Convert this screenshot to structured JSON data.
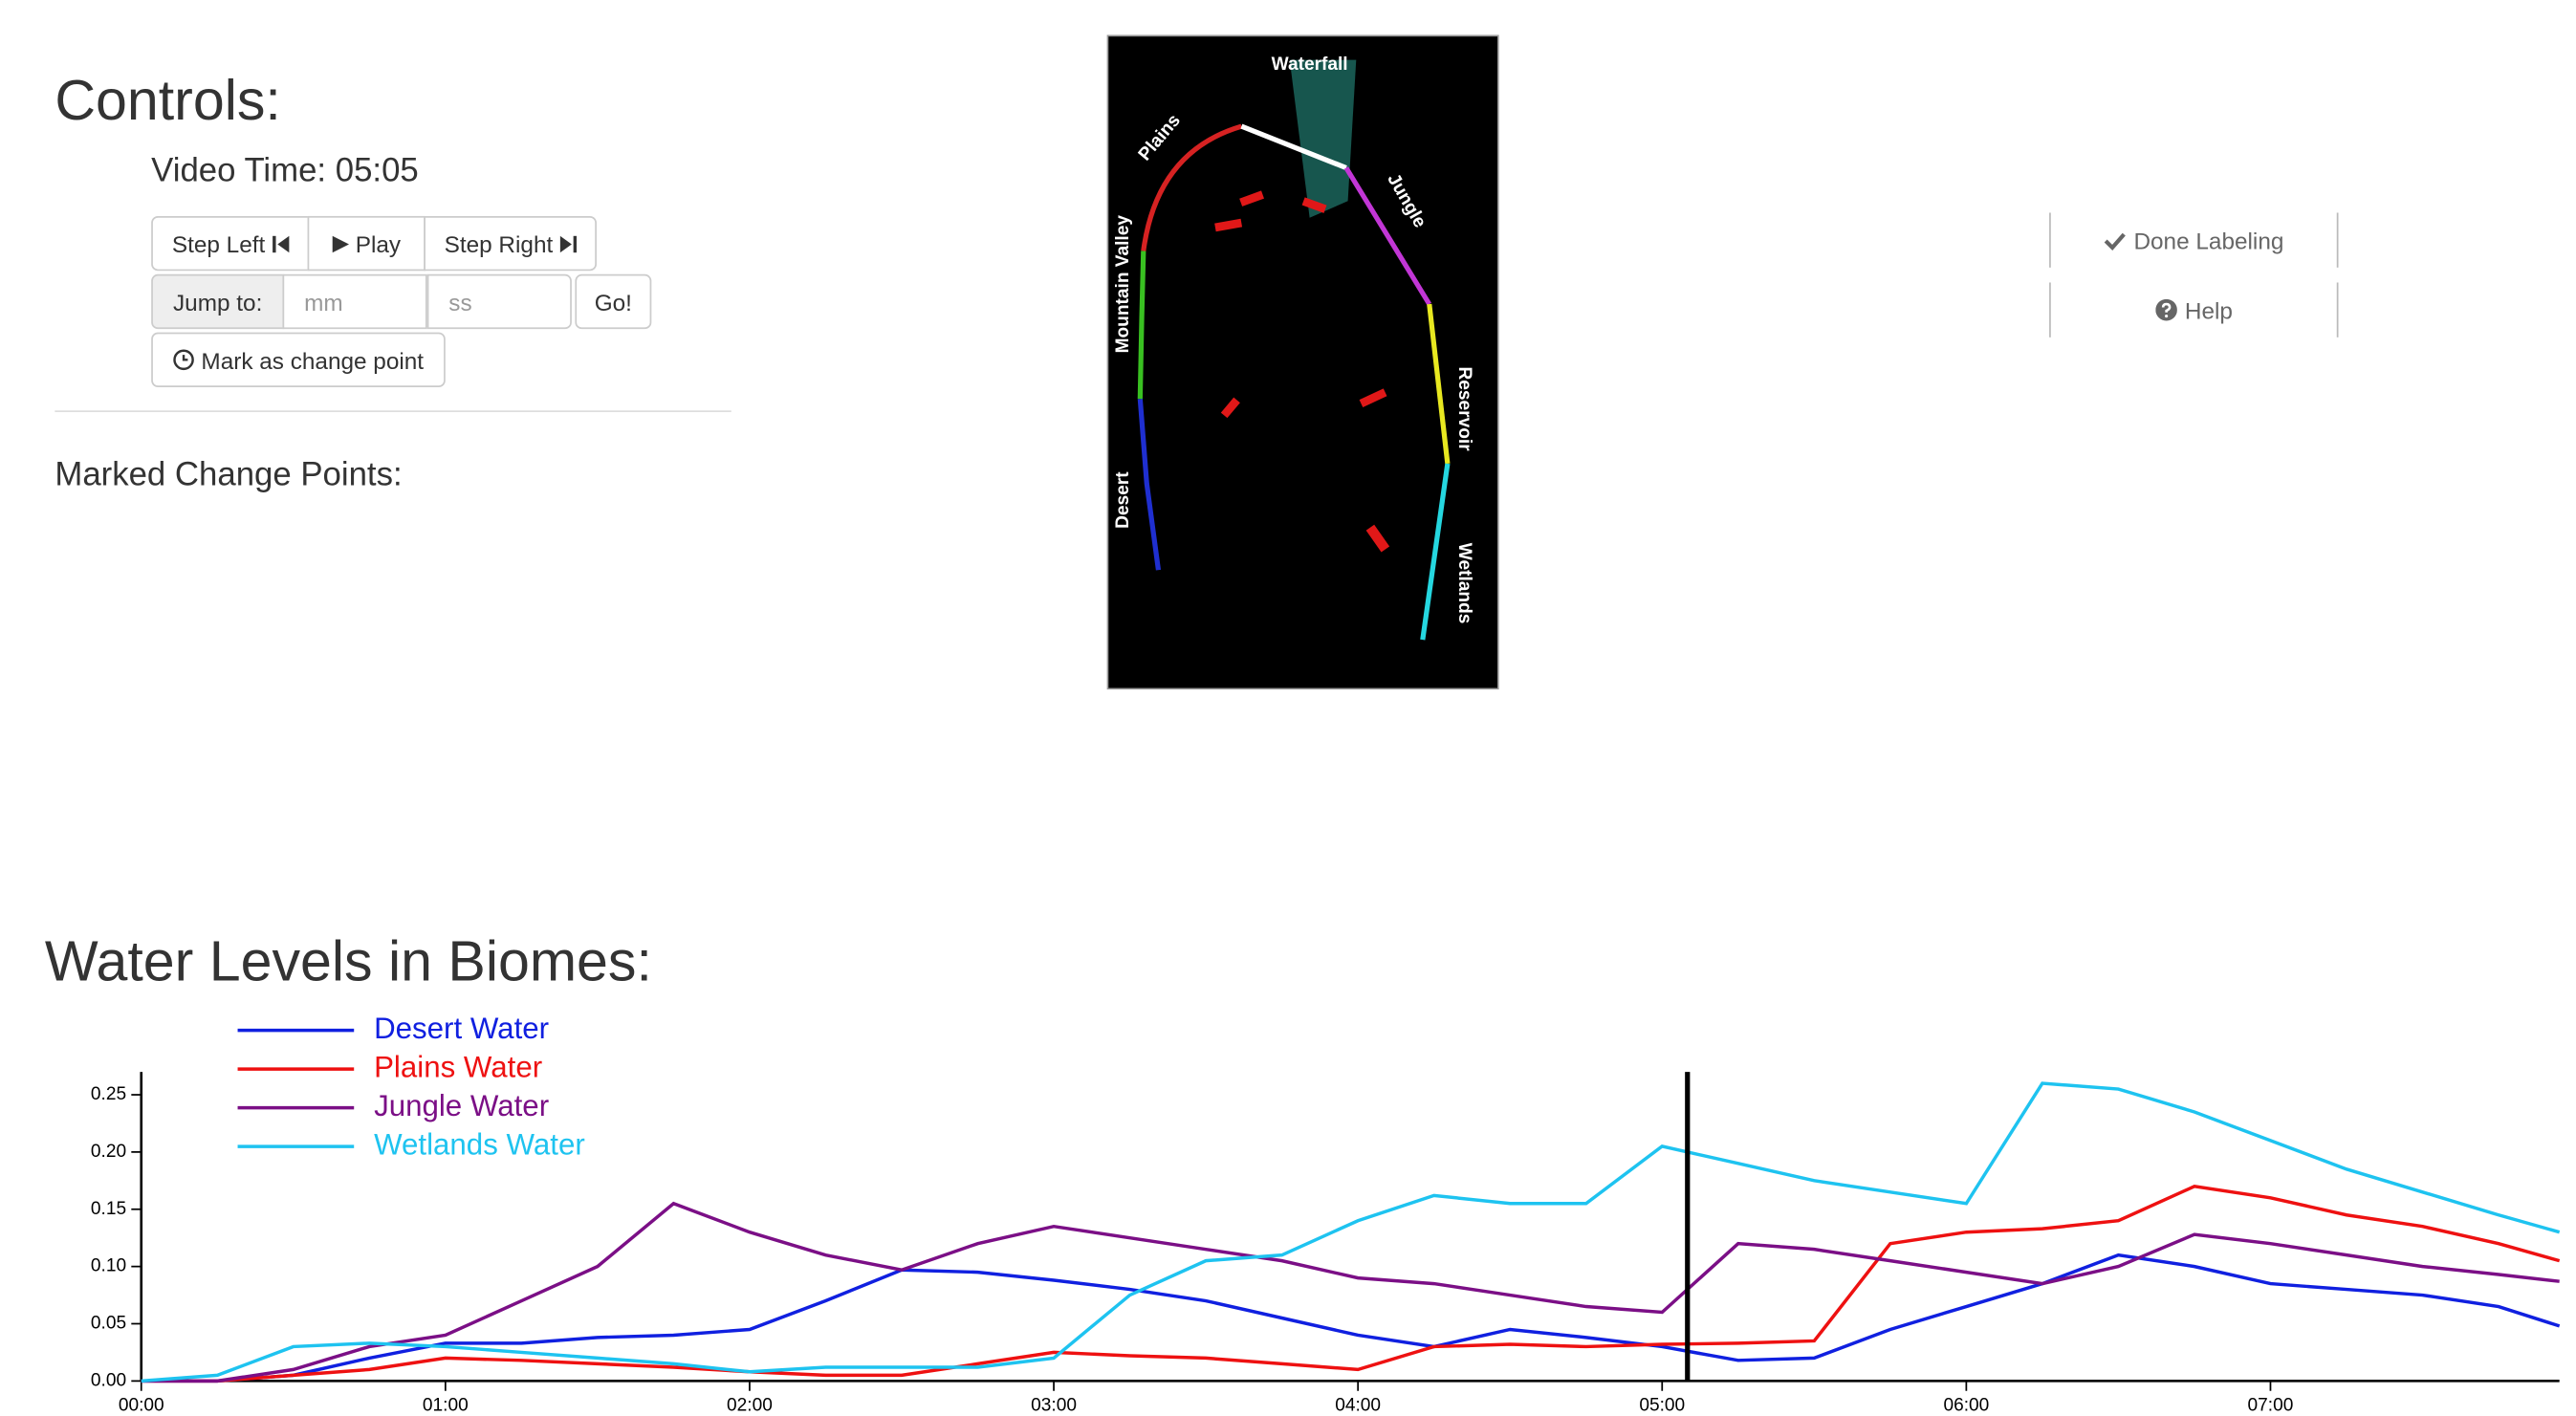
{
  "controls": {
    "title": "Controls:",
    "video_time": "Video Time: 05:05",
    "step_left": "Step Left",
    "play": "Play",
    "step_right": "Step Right",
    "jump_to": "Jump to:",
    "minutes_placeholder": "mm",
    "seconds_placeholder": "ss",
    "go": "Go!",
    "mark": "Mark as change point",
    "marked_title": "Marked Change Points:"
  },
  "video_frame": {
    "labels": [
      "Waterfall",
      "Plains",
      "Jungle",
      "Mountain Valley",
      "Reservoir",
      "Desert",
      "Wetlands"
    ]
  },
  "side_buttons": [
    "Done Labeling",
    "Help"
  ],
  "chart_data": {
    "type": "line",
    "title": "Water Levels in Biomes:",
    "x": [
      0,
      15,
      30,
      45,
      60,
      75,
      90,
      105,
      120,
      135,
      150,
      165,
      180,
      195,
      210,
      225,
      240,
      255,
      270,
      285,
      300,
      315,
      330,
      345,
      360,
      375,
      390,
      405,
      420,
      435,
      450,
      465,
      477
    ],
    "xlim": [
      0,
      477
    ],
    "xticks": [
      {
        "value": 0,
        "label": "00:00"
      },
      {
        "value": 60,
        "label": "01:00"
      },
      {
        "value": 120,
        "label": "02:00"
      },
      {
        "value": 180,
        "label": "03:00"
      },
      {
        "value": 240,
        "label": "04:00"
      },
      {
        "value": 300,
        "label": "05:00"
      },
      {
        "value": 360,
        "label": "06:00"
      },
      {
        "value": 420,
        "label": "07:00"
      }
    ],
    "ylim": [
      0,
      0.27
    ],
    "yticks": [
      {
        "value": 0,
        "label": "0.00"
      },
      0.05,
      {
        "value": 0.1,
        "label": "0.10"
      },
      0.15,
      {
        "value": 0.2,
        "label": "0.20"
      },
      0.25
    ],
    "current_time": 305,
    "series": [
      {
        "name": "Desert Water",
        "color": "#1020e0",
        "values": [
          0,
          0,
          0.005,
          0.02,
          0.033,
          0.033,
          0.038,
          0.04,
          0.045,
          0.07,
          0.097,
          0.095,
          0.088,
          0.08,
          0.07,
          0.055,
          0.04,
          0.03,
          0.045,
          0.038,
          0.03,
          0.018,
          0.02,
          0.045,
          0.065,
          0.085,
          0.11,
          0.1,
          0.085,
          0.08,
          0.075,
          0.065,
          0.048
        ]
      },
      {
        "name": "Plains Water",
        "color": "#ee1111",
        "values": [
          0,
          0,
          0.005,
          0.01,
          0.02,
          0.018,
          0.015,
          0.012,
          0.008,
          0.005,
          0.005,
          0.015,
          0.025,
          0.022,
          0.02,
          0.015,
          0.01,
          0.03,
          0.032,
          0.03,
          0.032,
          0.033,
          0.035,
          0.12,
          0.13,
          0.133,
          0.14,
          0.17,
          0.16,
          0.145,
          0.135,
          0.12,
          0.105
        ]
      },
      {
        "name": "Jungle Water",
        "color": "#7b0f86",
        "values": [
          0,
          0,
          0.01,
          0.03,
          0.04,
          0.07,
          0.1,
          0.155,
          0.13,
          0.11,
          0.097,
          0.12,
          0.135,
          0.125,
          0.115,
          0.105,
          0.09,
          0.085,
          0.075,
          0.065,
          0.06,
          0.12,
          0.115,
          0.105,
          0.095,
          0.085,
          0.1,
          0.128,
          0.12,
          0.11,
          0.1,
          0.093,
          0.087
        ]
      },
      {
        "name": "Wetlands Water",
        "color": "#1ec3f0",
        "values": [
          0,
          0.005,
          0.03,
          0.033,
          0.03,
          0.025,
          0.02,
          0.015,
          0.008,
          0.012,
          0.012,
          0.012,
          0.02,
          0.075,
          0.105,
          0.11,
          0.14,
          0.162,
          0.155,
          0.155,
          0.205,
          0.19,
          0.175,
          0.165,
          0.155,
          0.26,
          0.255,
          0.235,
          0.21,
          0.185,
          0.165,
          0.145,
          0.13
        ]
      }
    ]
  }
}
